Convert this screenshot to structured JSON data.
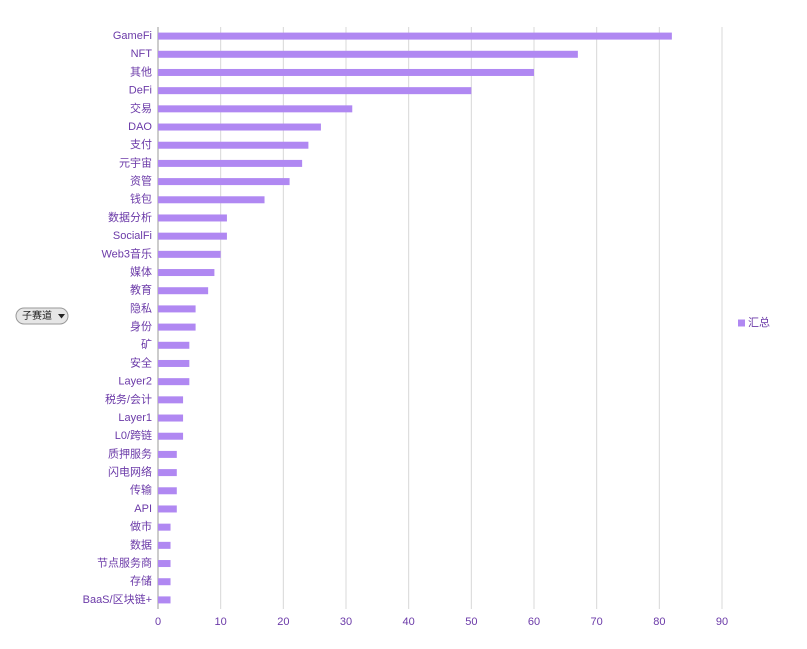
{
  "chart_data": {
    "type": "bar",
    "orientation": "horizontal",
    "categories": [
      "GameFi",
      "NFT",
      "其他",
      "DeFi",
      "交易",
      "DAO",
      "支付",
      "元宇宙",
      "资管",
      "钱包",
      "数据分析",
      "SocialFi",
      "Web3音乐",
      "媒体",
      "教育",
      "隐私",
      "身份",
      "矿",
      "安全",
      "Layer2",
      "税务/会计",
      "Layer1",
      "L0/跨链",
      "质押服务",
      "闪电网络",
      "传输",
      "API",
      "做市",
      "数据",
      "节点服务商",
      "存储",
      "BaaS/区块链+"
    ],
    "series": [
      {
        "name": "汇总",
        "color": "#b088f2",
        "values": [
          82,
          67,
          60,
          50,
          31,
          26,
          24,
          23,
          21,
          17,
          11,
          11,
          10,
          9,
          8,
          6,
          6,
          5,
          5,
          5,
          4,
          4,
          4,
          3,
          3,
          3,
          3,
          2,
          2,
          2,
          2,
          2
        ]
      }
    ],
    "xlim": [
      0,
      90
    ],
    "xticks": [
      0,
      10,
      20,
      30,
      40,
      50,
      60,
      70,
      80,
      90
    ],
    "grid": true,
    "legend": "right"
  },
  "controls": {
    "filter": "子赛道"
  }
}
